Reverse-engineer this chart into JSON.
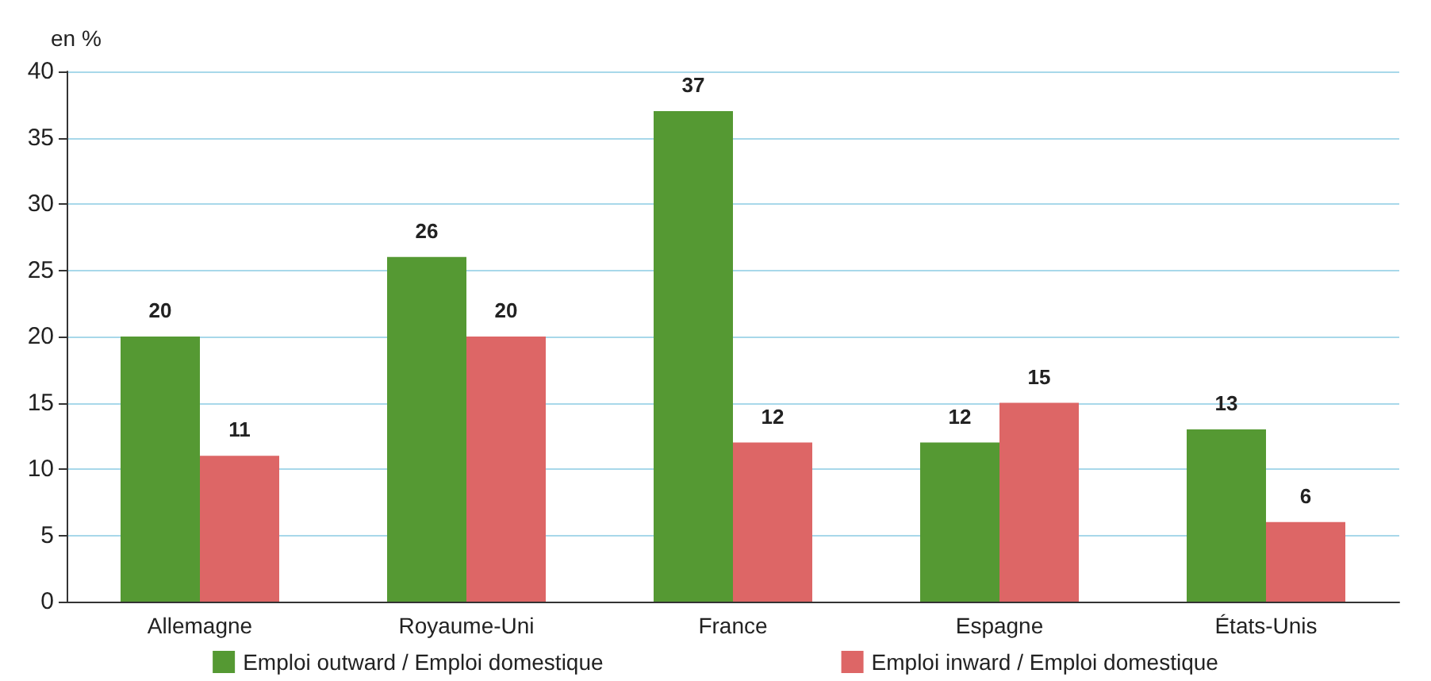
{
  "chart_data": {
    "type": "bar",
    "ylabel": "en %",
    "categories": [
      "Allemagne",
      "Royaume-Uni",
      "France",
      "Espagne",
      "États-Unis"
    ],
    "series": [
      {
        "name": "Emploi outward / Emploi domestique",
        "color": "#559933",
        "values": [
          20,
          26,
          37,
          12,
          13
        ]
      },
      {
        "name": "Emploi inward / Emploi domestique",
        "color": "#dd6666",
        "values": [
          11,
          20,
          12,
          15,
          6
        ]
      }
    ],
    "ylim": [
      0,
      40
    ],
    "yticks": [
      0,
      5,
      10,
      15,
      20,
      25,
      30,
      35,
      40
    ],
    "grid": "y",
    "legend": "bottom",
    "data_labels": true
  }
}
